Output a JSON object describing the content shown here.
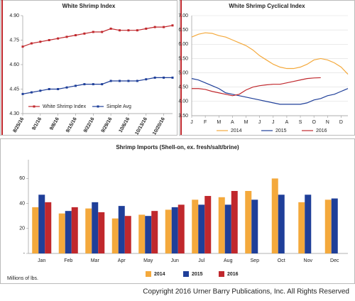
{
  "chart_data": [
    {
      "type": "line",
      "title": "White Shrimp Index",
      "categories": [
        "8/25/16",
        null,
        "9/1/16",
        null,
        "9/8/16",
        null,
        "9/15/16",
        null,
        "9/22/16",
        null,
        "9/29/16",
        null,
        "10/6/16",
        null,
        "10/13/16",
        null,
        "10/20/16",
        null
      ],
      "series": [
        {
          "name": "White Shrimp Index",
          "color": "#c0282d",
          "values": [
            4.71,
            4.73,
            4.74,
            4.75,
            4.76,
            4.77,
            4.78,
            4.79,
            4.8,
            4.8,
            4.82,
            4.81,
            4.81,
            4.81,
            4.82,
            4.83,
            4.83,
            4.84
          ]
        },
        {
          "name": "Simple Avg",
          "color": "#1f3f99",
          "values": [
            4.42,
            4.43,
            4.44,
            4.45,
            4.45,
            4.46,
            4.47,
            4.48,
            4.48,
            4.48,
            4.5,
            4.5,
            4.5,
            4.5,
            4.51,
            4.52,
            4.52,
            4.52
          ]
        }
      ],
      "ylim": [
        4.3,
        4.9
      ],
      "yticks": [
        {
          "value": 4.3,
          "label": "4.30"
        },
        {
          "value": 4.45,
          "label": "4.45"
        },
        {
          "value": 4.6,
          "label": "4.60"
        },
        {
          "value": 4.75,
          "label": "4.75"
        },
        {
          "value": 4.9,
          "label": "4.90"
        }
      ],
      "grid": false,
      "markers": true,
      "legend": "bottom"
    },
    {
      "type": "line",
      "title": "White Shrimp Cyclical Index",
      "categories": [
        "J",
        null,
        "F",
        null,
        "M",
        null,
        "A",
        null,
        "M",
        null,
        "J",
        null,
        "J",
        null,
        "A",
        null,
        "S",
        null,
        "O",
        null,
        "N",
        null,
        "D",
        null
      ],
      "series": [
        {
          "name": "2014",
          "color": "#f4a93c",
          "values": [
            6.25,
            6.35,
            6.4,
            6.38,
            6.3,
            6.25,
            6.15,
            6.05,
            5.95,
            5.8,
            5.6,
            5.45,
            5.3,
            5.2,
            5.15,
            5.15,
            5.2,
            5.3,
            5.45,
            5.5,
            5.45,
            5.35,
            5.2,
            4.95
          ]
        },
        {
          "name": "2015",
          "color": "#1f3f99",
          "values": [
            4.8,
            4.75,
            4.65,
            4.55,
            4.45,
            4.3,
            4.25,
            4.2,
            4.15,
            4.1,
            4.05,
            4.0,
            3.95,
            3.9,
            3.9,
            3.9,
            3.9,
            3.95,
            4.05,
            4.1,
            4.2,
            4.25,
            4.35,
            4.45
          ]
        },
        {
          "name": "2016",
          "color": "#c0282d",
          "values": [
            4.45,
            4.45,
            4.42,
            4.35,
            4.3,
            4.25,
            4.2,
            4.25,
            4.4,
            4.5,
            4.55,
            4.58,
            4.6,
            4.6,
            4.65,
            4.7,
            4.75,
            4.8,
            4.82,
            4.83,
            null,
            null,
            null,
            null
          ]
        }
      ],
      "ylim": [
        3.5,
        7
      ],
      "yticks": [
        {
          "value": 3.5,
          "label": "3.50"
        },
        {
          "value": 4,
          "label": "4.00"
        },
        {
          "value": 4.5,
          "label": "4.50"
        },
        {
          "value": 5,
          "label": "5.00"
        },
        {
          "value": 5.5,
          "label": "5.50"
        },
        {
          "value": 6,
          "label": "6.00"
        },
        {
          "value": 6.5,
          "label": "6.50"
        },
        {
          "value": 7,
          "label": "7.00"
        }
      ],
      "grid": true,
      "markers": false,
      "legend": "bottom"
    },
    {
      "type": "bar",
      "title": "Shrimp Imports (Shell-on, ex. fresh/salt/brine)",
      "y_label": "Millions of lbs.",
      "categories": [
        "Jan",
        "Feb",
        "Mar",
        "Apr",
        "May",
        "Jun",
        "Jul",
        "Aug",
        "Sep",
        "Oct",
        "Nov",
        "Dec"
      ],
      "series": [
        {
          "name": "2014",
          "color": "#f4a93c",
          "values": [
            37,
            32,
            36,
            28,
            31,
            35,
            43,
            45,
            50,
            60,
            41,
            43
          ]
        },
        {
          "name": "2015",
          "color": "#1f3f99",
          "values": [
            47,
            34,
            41,
            38,
            30,
            37,
            39,
            39,
            43,
            47,
            47,
            44
          ]
        },
        {
          "name": "2016",
          "color": "#c0282d",
          "values": [
            41,
            37,
            33,
            30,
            34,
            39,
            46,
            50,
            null,
            null,
            null,
            null
          ]
        }
      ],
      "ylim": [
        0,
        75
      ],
      "yticks": [
        {
          "value": 0,
          "label": "-"
        },
        20,
        40,
        60
      ],
      "grid": false,
      "legend": "bottom"
    }
  ],
  "footer": "Copyright 2016 Urner Barry Publications, Inc. All Rights Reserved"
}
